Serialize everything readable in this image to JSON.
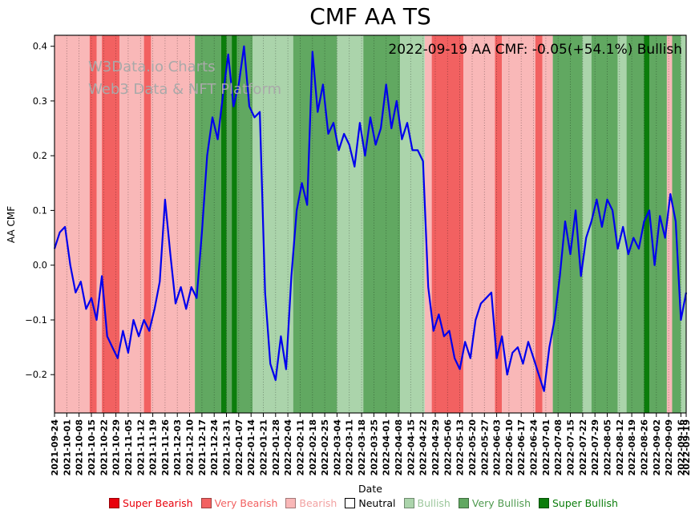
{
  "title": "CMF AA TS",
  "annotation": "2022-09-19 AA CMF: -0.05(+54.1%) Bullish",
  "watermark": {
    "line1": "W3Data.io Charts",
    "line2": "Web3 Data & NFT Platform"
  },
  "axes": {
    "ylabel": "AA CMF",
    "xlabel": "Date"
  },
  "chart_data": {
    "type": "line",
    "title": "CMF AA TS",
    "xlabel": "Date",
    "ylabel": "AA CMF",
    "ylim": [
      -0.27,
      0.42
    ],
    "yticks": [
      0.4,
      0.3,
      0.2,
      0.1,
      0.0,
      -0.1,
      -0.2
    ],
    "grid": "vertical-dotted",
    "legend_position": "bottom",
    "x_span_days": 360,
    "xtick_days": [
      0,
      7,
      14,
      21,
      28,
      35,
      42,
      49,
      56,
      63,
      70,
      77,
      84,
      91,
      98,
      105,
      112,
      119,
      126,
      133,
      140,
      147,
      154,
      161,
      168,
      175,
      182,
      189,
      196,
      203,
      210,
      217,
      224,
      231,
      238,
      245,
      252,
      259,
      266,
      273,
      280,
      287,
      294,
      301,
      308,
      315,
      322,
      329,
      336,
      343,
      350,
      357,
      360
    ],
    "xticklabels": [
      "2021-09-24",
      "2021-10-01",
      "2021-10-08",
      "2021-10-15",
      "2021-10-22",
      "2021-10-29",
      "2021-11-05",
      "2021-11-12",
      "2021-11-19",
      "2021-11-26",
      "2021-12-03",
      "2021-12-10",
      "2021-12-17",
      "2021-12-24",
      "2021-12-31",
      "2022-01-07",
      "2022-01-14",
      "2022-01-21",
      "2022-01-28",
      "2022-02-04",
      "2022-02-11",
      "2022-02-18",
      "2022-02-25",
      "2022-03-04",
      "2022-03-11",
      "2022-03-18",
      "2022-03-25",
      "2022-04-01",
      "2022-04-08",
      "2022-04-15",
      "2022-04-22",
      "2022-04-29",
      "2022-05-06",
      "2022-05-13",
      "2022-05-20",
      "2022-05-27",
      "2022-06-03",
      "2022-06-10",
      "2022-06-17",
      "2022-06-24",
      "2022-07-01",
      "2022-07-08",
      "2022-07-15",
      "2022-07-22",
      "2022-07-29",
      "2022-08-05",
      "2022-08-12",
      "2022-08-19",
      "2022-08-26",
      "2022-09-02",
      "2022-09-09",
      "2022-09-16",
      "2022-09-19"
    ],
    "series": [
      {
        "name": "AA CMF",
        "color": "#0000ee",
        "x_days": [
          0,
          3,
          6,
          9,
          12,
          15,
          18,
          21,
          24,
          27,
          30,
          33,
          36,
          39,
          42,
          45,
          48,
          51,
          54,
          57,
          60,
          63,
          66,
          69,
          72,
          75,
          78,
          81,
          84,
          87,
          90,
          93,
          96,
          99,
          102,
          105,
          108,
          111,
          114,
          117,
          120,
          123,
          126,
          129,
          132,
          135,
          138,
          141,
          144,
          147,
          150,
          153,
          156,
          159,
          162,
          165,
          168,
          171,
          174,
          177,
          180,
          183,
          186,
          189,
          192,
          195,
          198,
          201,
          204,
          207,
          210,
          213,
          216,
          219,
          222,
          225,
          228,
          231,
          234,
          237,
          240,
          243,
          246,
          249,
          252,
          255,
          258,
          261,
          264,
          267,
          270,
          273,
          276,
          279,
          282,
          285,
          288,
          291,
          294,
          297,
          300,
          303,
          306,
          309,
          312,
          315,
          318,
          321,
          324,
          327,
          330,
          333,
          336,
          339,
          342,
          345,
          348,
          351,
          354,
          357,
          360
        ],
        "values": [
          0.03,
          0.06,
          0.07,
          0.0,
          -0.05,
          -0.03,
          -0.08,
          -0.06,
          -0.1,
          -0.02,
          -0.13,
          -0.15,
          -0.17,
          -0.12,
          -0.16,
          -0.1,
          -0.13,
          -0.1,
          -0.12,
          -0.08,
          -0.03,
          0.12,
          0.02,
          -0.07,
          -0.04,
          -0.08,
          -0.04,
          -0.06,
          0.06,
          0.2,
          0.27,
          0.23,
          0.31,
          0.385,
          0.29,
          0.33,
          0.4,
          0.29,
          0.27,
          0.28,
          -0.05,
          -0.18,
          -0.21,
          -0.13,
          -0.19,
          -0.02,
          0.1,
          0.15,
          0.11,
          0.39,
          0.28,
          0.33,
          0.24,
          0.26,
          0.21,
          0.24,
          0.22,
          0.18,
          0.26,
          0.2,
          0.27,
          0.22,
          0.25,
          0.33,
          0.25,
          0.3,
          0.23,
          0.26,
          0.21,
          0.21,
          0.19,
          -0.04,
          -0.12,
          -0.09,
          -0.13,
          -0.12,
          -0.17,
          -0.19,
          -0.14,
          -0.17,
          -0.1,
          -0.07,
          -0.06,
          -0.05,
          -0.17,
          -0.13,
          -0.2,
          -0.16,
          -0.15,
          -0.18,
          -0.14,
          -0.17,
          -0.2,
          -0.23,
          -0.15,
          -0.1,
          -0.02,
          0.08,
          0.02,
          0.1,
          -0.02,
          0.05,
          0.08,
          0.12,
          0.07,
          0.12,
          0.1,
          0.03,
          0.07,
          0.02,
          0.05,
          0.03,
          0.08,
          0.1,
          0.0,
          0.09,
          0.05,
          0.13,
          0.08,
          -0.1,
          -0.05
        ]
      }
    ],
    "band_colors": {
      "super_bearish": "#e8000b",
      "very_bearish": "#f26161",
      "bearish": "#f9b8b8",
      "neutral": "#ffffff",
      "bullish": "#abd4ab",
      "very_bullish": "#61a861",
      "super_bullish": "#0b7d0b"
    },
    "sentiment_bands": [
      {
        "start_day": 0,
        "end_day": 20,
        "sentiment": "bearish"
      },
      {
        "start_day": 20,
        "end_day": 24,
        "sentiment": "very_bearish"
      },
      {
        "start_day": 24,
        "end_day": 27,
        "sentiment": "bearish"
      },
      {
        "start_day": 27,
        "end_day": 37,
        "sentiment": "very_bearish"
      },
      {
        "start_day": 37,
        "end_day": 51,
        "sentiment": "bearish"
      },
      {
        "start_day": 51,
        "end_day": 55,
        "sentiment": "very_bearish"
      },
      {
        "start_day": 55,
        "end_day": 80,
        "sentiment": "bearish"
      },
      {
        "start_day": 80,
        "end_day": 95,
        "sentiment": "very_bullish"
      },
      {
        "start_day": 95,
        "end_day": 98,
        "sentiment": "super_bullish"
      },
      {
        "start_day": 98,
        "end_day": 101,
        "sentiment": "very_bullish"
      },
      {
        "start_day": 101,
        "end_day": 104,
        "sentiment": "super_bullish"
      },
      {
        "start_day": 104,
        "end_day": 113,
        "sentiment": "very_bullish"
      },
      {
        "start_day": 113,
        "end_day": 136,
        "sentiment": "bullish"
      },
      {
        "start_day": 136,
        "end_day": 161,
        "sentiment": "very_bullish"
      },
      {
        "start_day": 161,
        "end_day": 176,
        "sentiment": "bullish"
      },
      {
        "start_day": 176,
        "end_day": 197,
        "sentiment": "very_bullish"
      },
      {
        "start_day": 197,
        "end_day": 211,
        "sentiment": "bullish"
      },
      {
        "start_day": 211,
        "end_day": 215,
        "sentiment": "bearish"
      },
      {
        "start_day": 215,
        "end_day": 233,
        "sentiment": "very_bearish"
      },
      {
        "start_day": 233,
        "end_day": 251,
        "sentiment": "bearish"
      },
      {
        "start_day": 251,
        "end_day": 255,
        "sentiment": "very_bearish"
      },
      {
        "start_day": 255,
        "end_day": 274,
        "sentiment": "bearish"
      },
      {
        "start_day": 274,
        "end_day": 278,
        "sentiment": "very_bearish"
      },
      {
        "start_day": 278,
        "end_day": 284,
        "sentiment": "bearish"
      },
      {
        "start_day": 284,
        "end_day": 301,
        "sentiment": "very_bullish"
      },
      {
        "start_day": 301,
        "end_day": 306,
        "sentiment": "bullish"
      },
      {
        "start_day": 306,
        "end_day": 321,
        "sentiment": "very_bullish"
      },
      {
        "start_day": 321,
        "end_day": 326,
        "sentiment": "bullish"
      },
      {
        "start_day": 326,
        "end_day": 336,
        "sentiment": "very_bullish"
      },
      {
        "start_day": 336,
        "end_day": 339,
        "sentiment": "super_bullish"
      },
      {
        "start_day": 339,
        "end_day": 349,
        "sentiment": "very_bullish"
      },
      {
        "start_day": 349,
        "end_day": 352,
        "sentiment": "bearish"
      },
      {
        "start_day": 352,
        "end_day": 357,
        "sentiment": "very_bullish"
      },
      {
        "start_day": 357,
        "end_day": 360,
        "sentiment": "bullish"
      }
    ],
    "legend": [
      {
        "label": "Super Bearish",
        "color": "#e8000b",
        "text_color": "#e8000b"
      },
      {
        "label": "Very Bearish",
        "color": "#f26161",
        "text_color": "#f26161"
      },
      {
        "label": "Bearish",
        "color": "#f9b8b8",
        "text_color": "#f2a2a2"
      },
      {
        "label": "Neutral",
        "color": "#ffffff",
        "text_color": "#000000"
      },
      {
        "label": "Bullish",
        "color": "#abd4ab",
        "text_color": "#9cc79c"
      },
      {
        "label": "Very Bullish",
        "color": "#61a861",
        "text_color": "#4f9a4f"
      },
      {
        "label": "Super Bullish",
        "color": "#0b7d0b",
        "text_color": "#0b7d0b"
      }
    ]
  }
}
